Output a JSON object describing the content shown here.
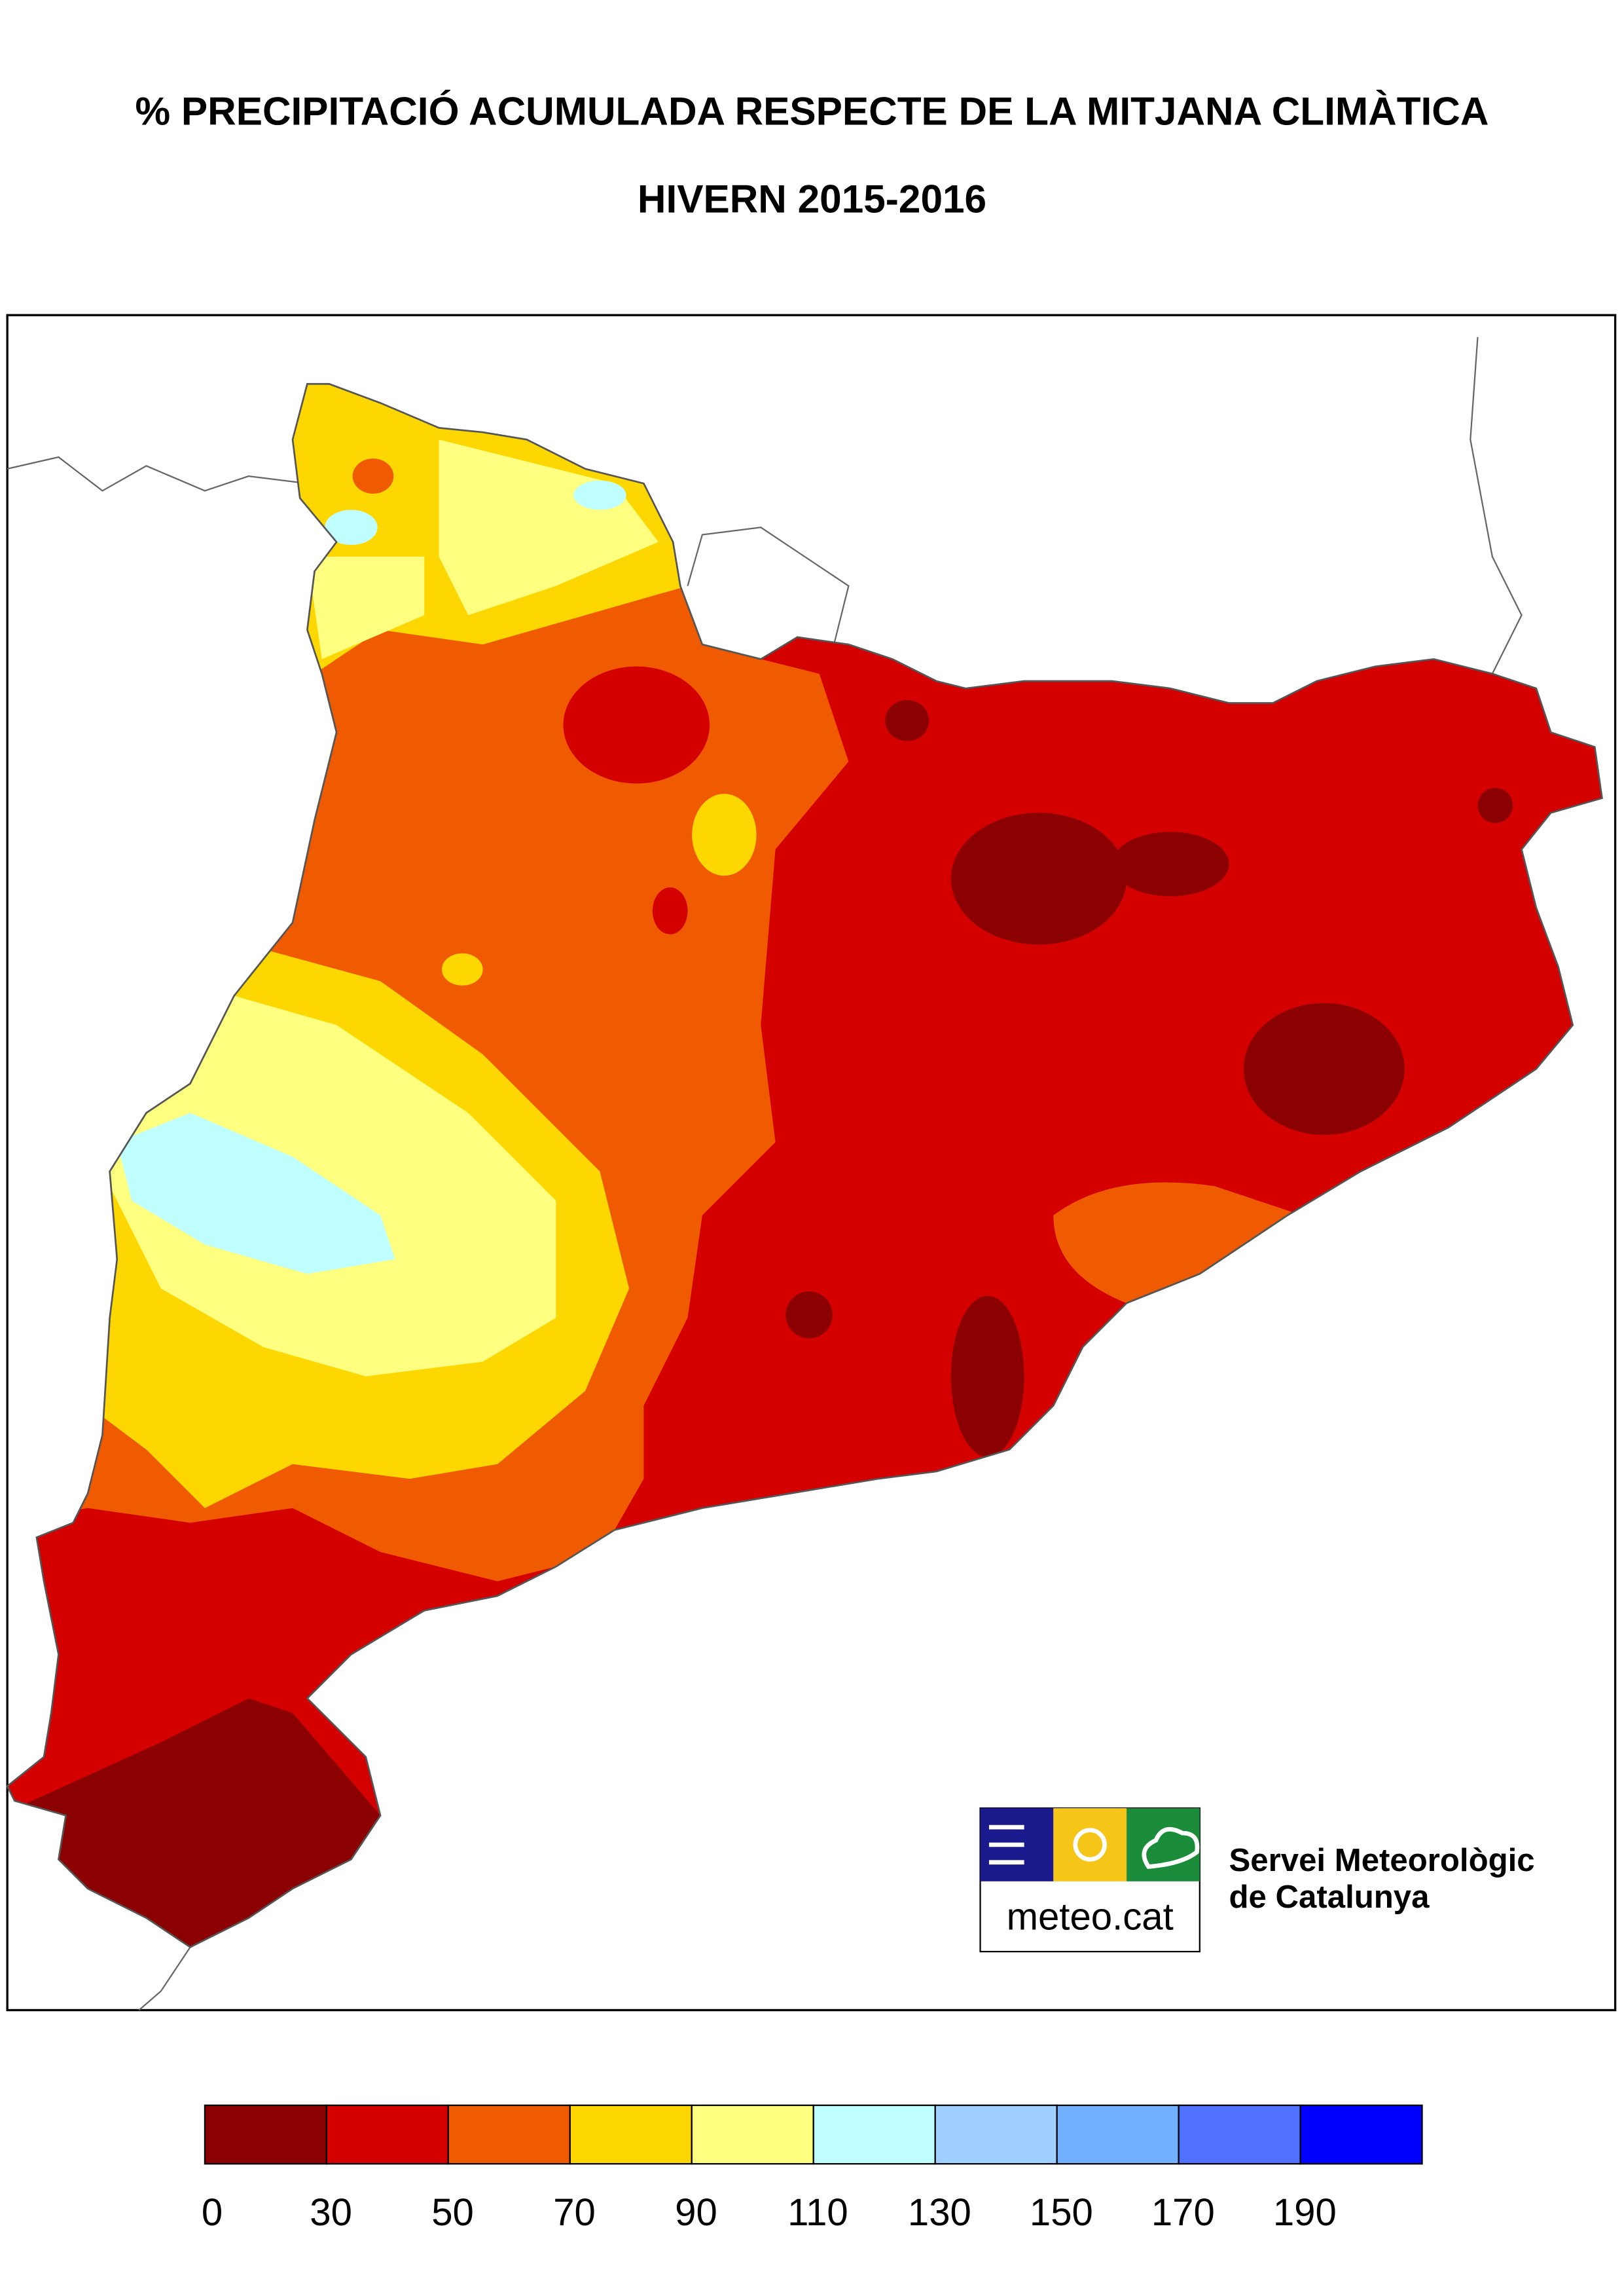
{
  "header": {
    "title": "% PRECIPITACIÓ ACUMULADA RESPECTE DE LA MITJANA CLIMÀTICA",
    "subtitle": "HIVERN 2015-2016"
  },
  "logo": {
    "brand": "meteo.cat",
    "line1": "Servei Meteorològic",
    "line2": "de Catalunya"
  },
  "legend": {
    "colors": [
      "#8b0000",
      "#d40000",
      "#f05a00",
      "#ffd700",
      "#ffff80",
      "#c0ffff",
      "#a0d0ff",
      "#70b0ff",
      "#5070ff",
      "#0000ff"
    ],
    "labels": [
      0,
      30,
      50,
      70,
      90,
      110,
      130,
      150,
      170,
      190
    ]
  }
}
